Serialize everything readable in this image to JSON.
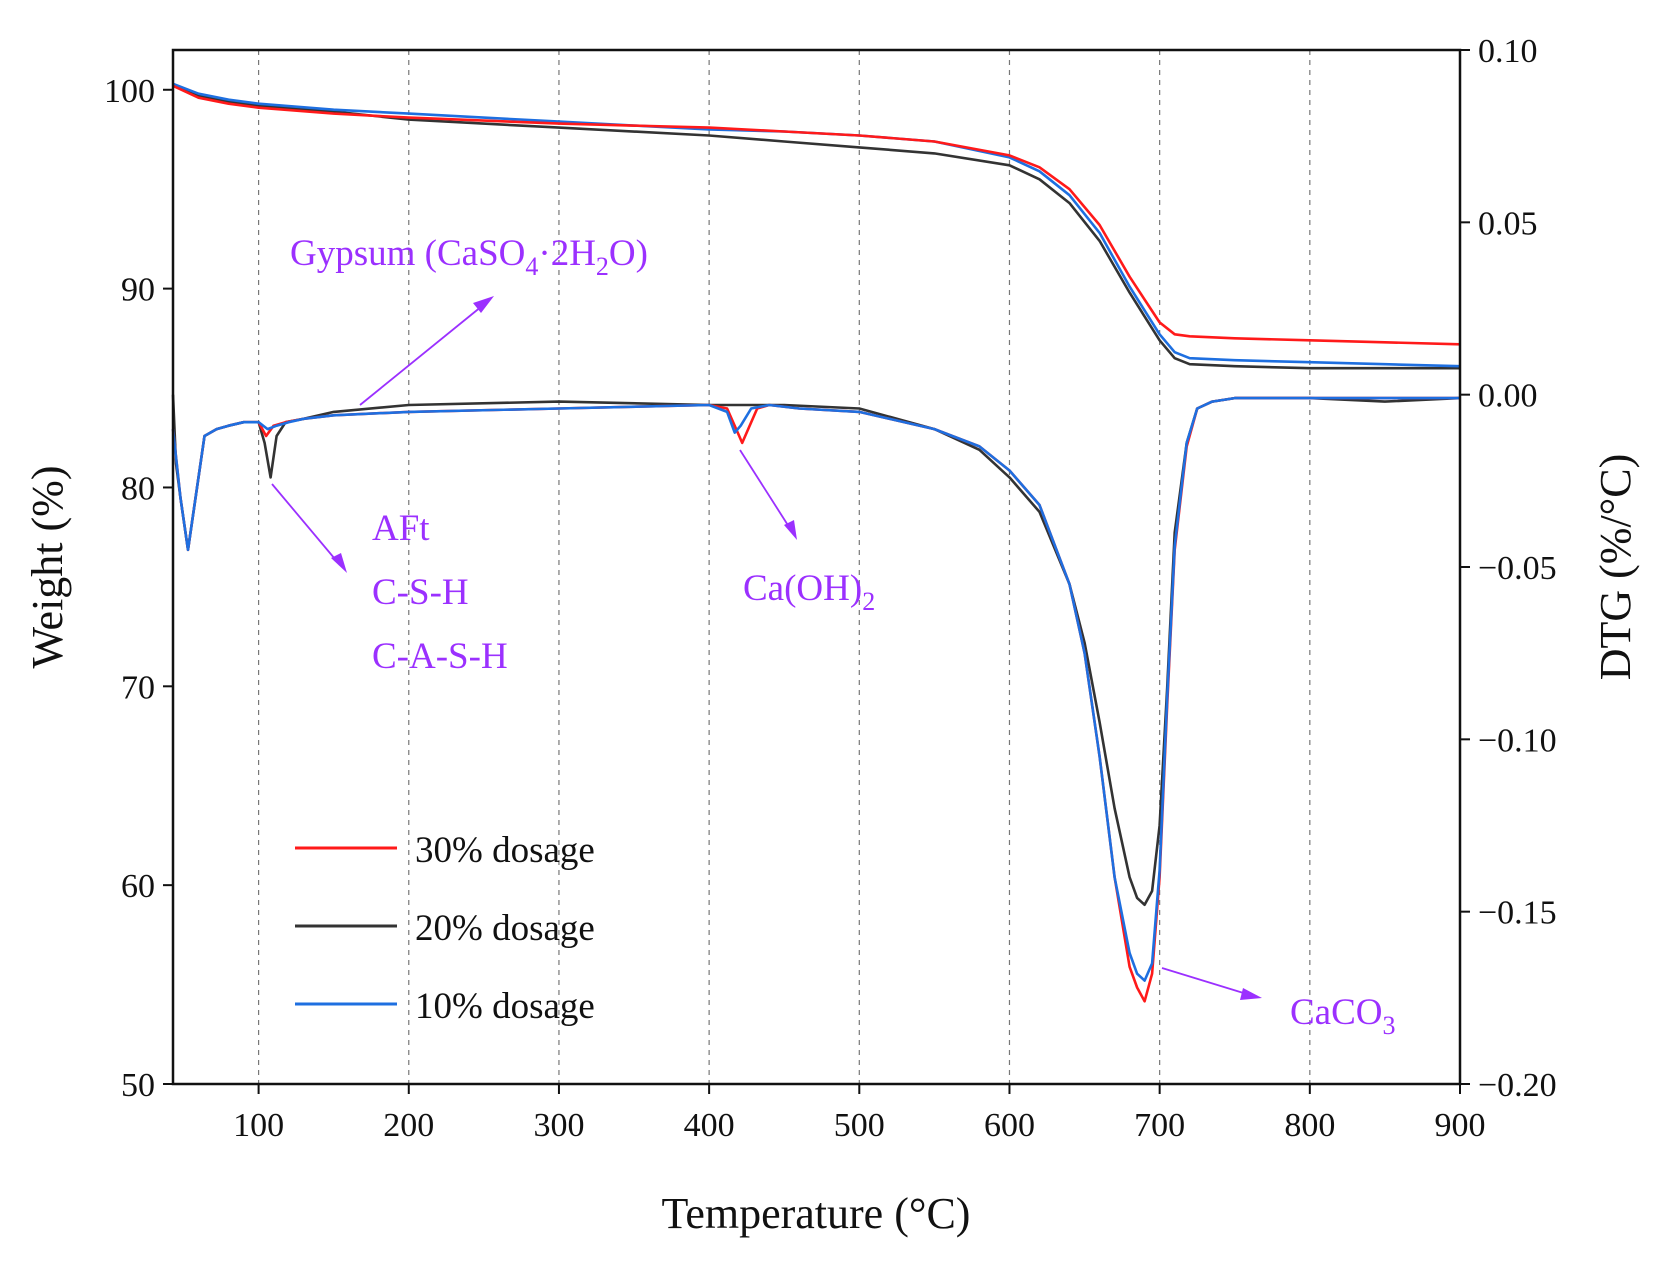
{
  "chart_data": {
    "type": "line",
    "xlabel": "Temperature (°C)",
    "ylabel_left": "Weight (%)",
    "ylabel_right": "DTG (%/°C)",
    "xlim": [
      43,
      900
    ],
    "ylim_left": [
      50,
      102
    ],
    "ylim_right": [
      -0.2,
      0.1
    ],
    "x_ticks": [
      100,
      200,
      300,
      400,
      500,
      600,
      700,
      800,
      900
    ],
    "x_tick_labels": [
      "100",
      "200",
      "300",
      "400",
      "500",
      "600",
      "700",
      "800",
      "900"
    ],
    "y_left_ticks": [
      50,
      60,
      70,
      80,
      90,
      100
    ],
    "y_left_tick_labels": [
      "50",
      "60",
      "70",
      "80",
      "90",
      "100"
    ],
    "y_right_ticks": [
      0.1,
      0.05,
      0.0,
      -0.05,
      -0.1,
      -0.15,
      -0.2
    ],
    "y_right_tick_labels": [
      "0.10",
      "0.05",
      "0.00",
      "−0.05",
      "−0.10",
      "−0.15",
      "−0.20"
    ],
    "grid": "vertical dashed",
    "legend_position": "bottom-left",
    "tg_series": [
      {
        "name": "30% dosage",
        "color": "#ff1a1a",
        "axis": "left",
        "x": [
          43,
          60,
          80,
          100,
          150,
          200,
          300,
          400,
          450,
          500,
          550,
          600,
          620,
          640,
          660,
          680,
          700,
          710,
          720,
          750,
          800,
          850,
          900
        ],
        "y": [
          100.2,
          99.6,
          99.3,
          99.1,
          98.8,
          98.6,
          98.3,
          98.1,
          97.9,
          97.7,
          97.4,
          96.7,
          96.1,
          95.0,
          93.2,
          90.6,
          88.3,
          87.7,
          87.6,
          87.5,
          87.4,
          87.3,
          87.2
        ]
      },
      {
        "name": "20% dosage",
        "color": "#333333",
        "axis": "left",
        "x": [
          43,
          60,
          80,
          100,
          150,
          200,
          300,
          400,
          450,
          500,
          550,
          600,
          620,
          640,
          660,
          680,
          700,
          710,
          720,
          750,
          800,
          850,
          900
        ],
        "y": [
          100.2,
          99.7,
          99.4,
          99.2,
          98.9,
          98.5,
          98.1,
          97.7,
          97.4,
          97.1,
          96.8,
          96.2,
          95.5,
          94.3,
          92.4,
          89.8,
          87.4,
          86.5,
          86.2,
          86.1,
          86.0,
          86.0,
          86.0
        ]
      },
      {
        "name": "10% dosage",
        "color": "#1e6fe0",
        "axis": "left",
        "x": [
          43,
          60,
          80,
          100,
          150,
          200,
          300,
          400,
          450,
          500,
          550,
          600,
          620,
          640,
          660,
          680,
          700,
          710,
          720,
          750,
          800,
          850,
          900
        ],
        "y": [
          100.3,
          99.8,
          99.5,
          99.3,
          99.0,
          98.8,
          98.4,
          98.0,
          97.9,
          97.7,
          97.4,
          96.6,
          95.9,
          94.7,
          92.8,
          90.1,
          87.7,
          86.8,
          86.5,
          86.4,
          86.3,
          86.2,
          86.1
        ]
      }
    ],
    "dtg_series": [
      {
        "name": "30% dosage",
        "color": "#ff1a1a",
        "axis": "right",
        "x": [
          43,
          48,
          53,
          58,
          64,
          72,
          80,
          90,
          100,
          105,
          110,
          118,
          130,
          150,
          200,
          300,
          400,
          412,
          418,
          422,
          426,
          432,
          440,
          460,
          500,
          550,
          580,
          600,
          620,
          640,
          650,
          660,
          670,
          680,
          685,
          690,
          695,
          700,
          705,
          710,
          718,
          725,
          735,
          750,
          800,
          850,
          900
        ],
        "y": [
          -0.01,
          -0.03,
          -0.045,
          -0.03,
          -0.012,
          -0.01,
          -0.009,
          -0.008,
          -0.008,
          -0.012,
          -0.009,
          -0.008,
          -0.007,
          -0.006,
          -0.005,
          -0.004,
          -0.003,
          -0.004,
          -0.01,
          -0.014,
          -0.01,
          -0.004,
          -0.003,
          -0.004,
          -0.005,
          -0.01,
          -0.015,
          -0.022,
          -0.032,
          -0.055,
          -0.075,
          -0.105,
          -0.14,
          -0.166,
          -0.172,
          -0.176,
          -0.168,
          -0.14,
          -0.09,
          -0.045,
          -0.015,
          -0.004,
          -0.002,
          -0.001,
          -0.001,
          -0.001,
          -0.001
        ]
      },
      {
        "name": "20% dosage",
        "color": "#333333",
        "axis": "right",
        "x": [
          43,
          45,
          48,
          53,
          58,
          64,
          72,
          80,
          90,
          100,
          104,
          108,
          112,
          118,
          130,
          150,
          200,
          300,
          400,
          450,
          500,
          550,
          580,
          600,
          620,
          640,
          650,
          660,
          670,
          680,
          685,
          690,
          695,
          700,
          705,
          710,
          718,
          725,
          735,
          750,
          800,
          850,
          900
        ],
        "y": [
          0.0,
          -0.02,
          -0.03,
          -0.045,
          -0.03,
          -0.012,
          -0.01,
          -0.009,
          -0.008,
          -0.008,
          -0.014,
          -0.024,
          -0.012,
          -0.008,
          -0.007,
          -0.005,
          -0.003,
          -0.002,
          -0.003,
          -0.003,
          -0.004,
          -0.01,
          -0.016,
          -0.024,
          -0.034,
          -0.055,
          -0.072,
          -0.095,
          -0.12,
          -0.14,
          -0.146,
          -0.148,
          -0.144,
          -0.125,
          -0.085,
          -0.04,
          -0.014,
          -0.004,
          -0.002,
          -0.001,
          -0.001,
          -0.002,
          -0.001
        ]
      },
      {
        "name": "10% dosage",
        "color": "#1e6fe0",
        "axis": "right",
        "x": [
          43,
          48,
          53,
          58,
          64,
          72,
          80,
          90,
          100,
          106,
          112,
          120,
          130,
          150,
          200,
          300,
          400,
          412,
          417,
          421,
          428,
          440,
          460,
          500,
          550,
          580,
          600,
          620,
          640,
          650,
          660,
          670,
          680,
          685,
          690,
          695,
          700,
          705,
          710,
          718,
          725,
          735,
          750,
          800,
          850,
          900
        ],
        "y": [
          -0.01,
          -0.03,
          -0.045,
          -0.03,
          -0.012,
          -0.01,
          -0.009,
          -0.008,
          -0.008,
          -0.01,
          -0.009,
          -0.008,
          -0.007,
          -0.006,
          -0.005,
          -0.004,
          -0.003,
          -0.005,
          -0.011,
          -0.009,
          -0.004,
          -0.003,
          -0.004,
          -0.005,
          -0.01,
          -0.015,
          -0.022,
          -0.032,
          -0.055,
          -0.075,
          -0.105,
          -0.14,
          -0.162,
          -0.168,
          -0.17,
          -0.165,
          -0.138,
          -0.088,
          -0.044,
          -0.014,
          -0.004,
          -0.002,
          -0.001,
          -0.001,
          -0.001,
          -0.001
        ]
      }
    ],
    "legend": [
      {
        "label": "30% dosage",
        "color": "#ff1a1a"
      },
      {
        "label": "20% dosage",
        "color": "#333333"
      },
      {
        "label": "10% dosage",
        "color": "#1e6fe0"
      }
    ],
    "annotation_color": "#9b30ff",
    "annotations": [
      {
        "id": "gypsum",
        "lines": [
          "Gypsum (CaSO",
          "4",
          "·2H",
          "2",
          "O)"
        ]
      },
      {
        "id": "aft",
        "lines": [
          "AFt",
          "C-S-H",
          "C-A-S-H"
        ]
      },
      {
        "id": "caoh2",
        "lines": [
          "Ca(OH)",
          "2"
        ]
      },
      {
        "id": "caco3",
        "lines": [
          "CaCO",
          "3"
        ]
      }
    ]
  }
}
